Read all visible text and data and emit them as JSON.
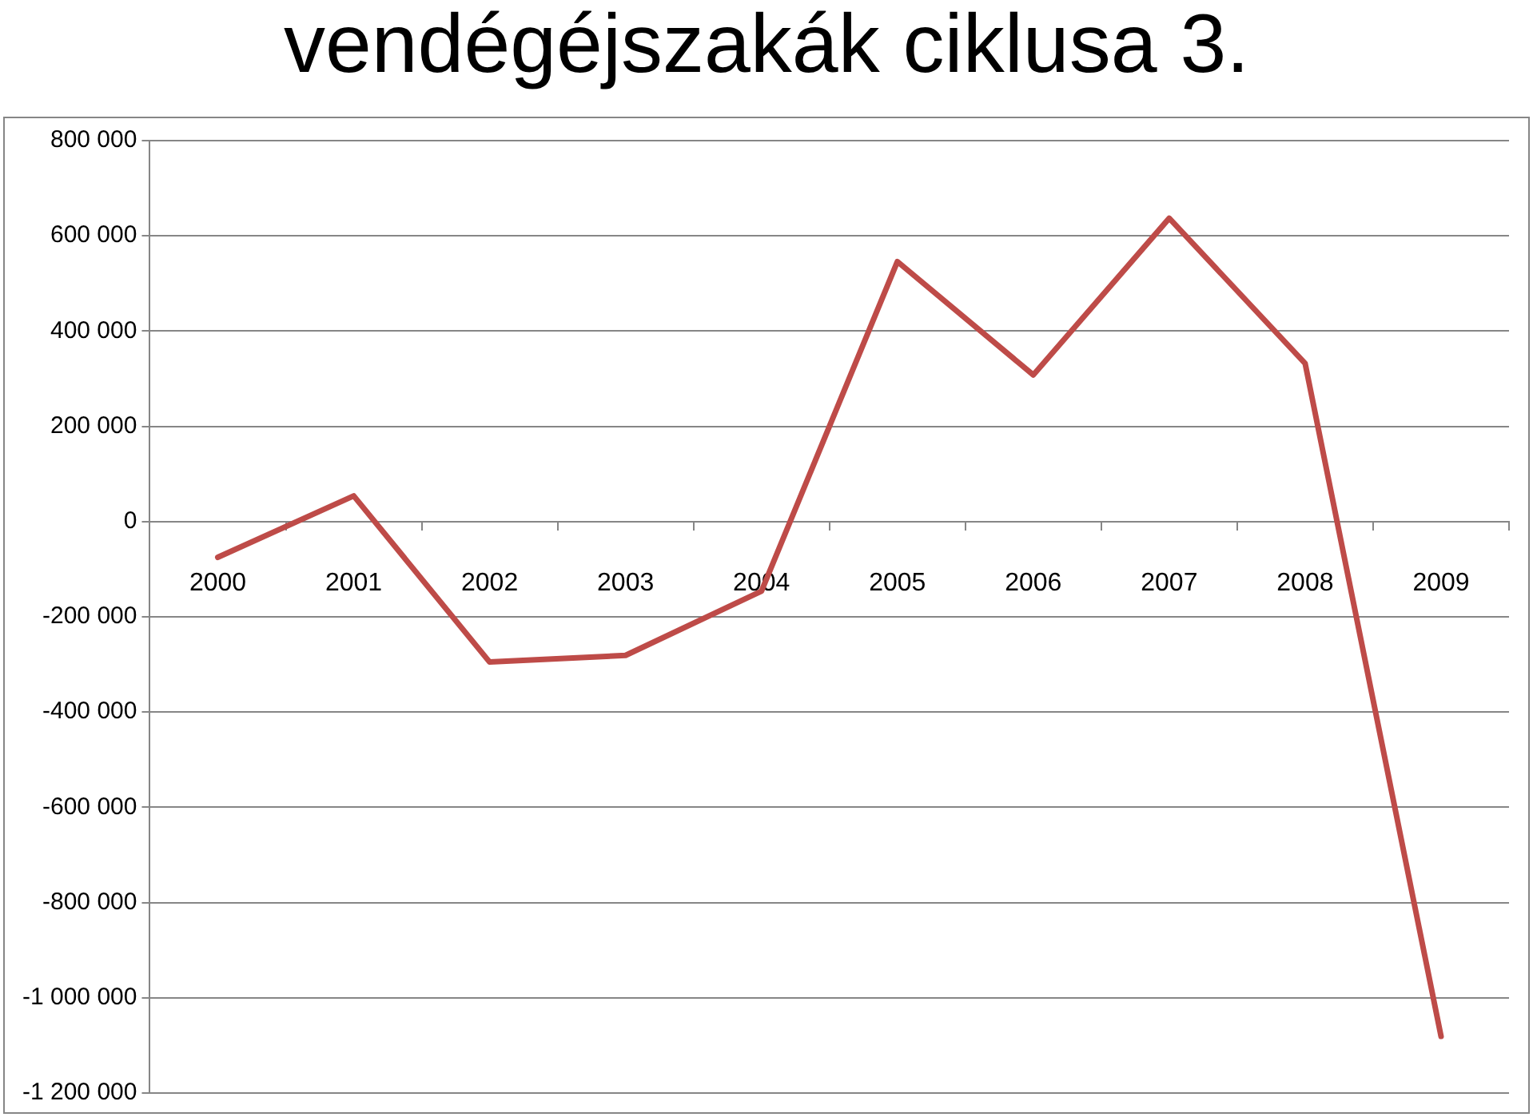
{
  "chart_data": {
    "type": "line",
    "title": "vendégéjszakák ciklusa 3.",
    "categories": [
      "2000",
      "2001",
      "2002",
      "2003",
      "2004",
      "2005",
      "2006",
      "2007",
      "2008",
      "2009"
    ],
    "series": [
      {
        "color": "#be4b48",
        "values": [
          -75000,
          54000,
          -295000,
          -281000,
          -146000,
          546000,
          308000,
          637000,
          332000,
          -1081000
        ]
      }
    ],
    "ylim": [
      -1200000,
      800000
    ],
    "yticks": [
      {
        "value": -1200000,
        "label": "-1 200 000"
      },
      {
        "value": -1000000,
        "label": "-1 000 000"
      },
      {
        "value": -800000,
        "label": "-800 000"
      },
      {
        "value": -600000,
        "label": "-600 000"
      },
      {
        "value": -400000,
        "label": "-400 000"
      },
      {
        "value": -200000,
        "label": "-200 000"
      },
      0,
      {
        "value": 200000,
        "label": "200 000"
      },
      {
        "value": 400000,
        "label": "400 000"
      },
      {
        "value": 600000,
        "label": "600 000"
      },
      {
        "value": 800000,
        "label": "800 000"
      }
    ],
    "grid": "y",
    "legend": false,
    "marker": "none",
    "line_style": "solid"
  }
}
